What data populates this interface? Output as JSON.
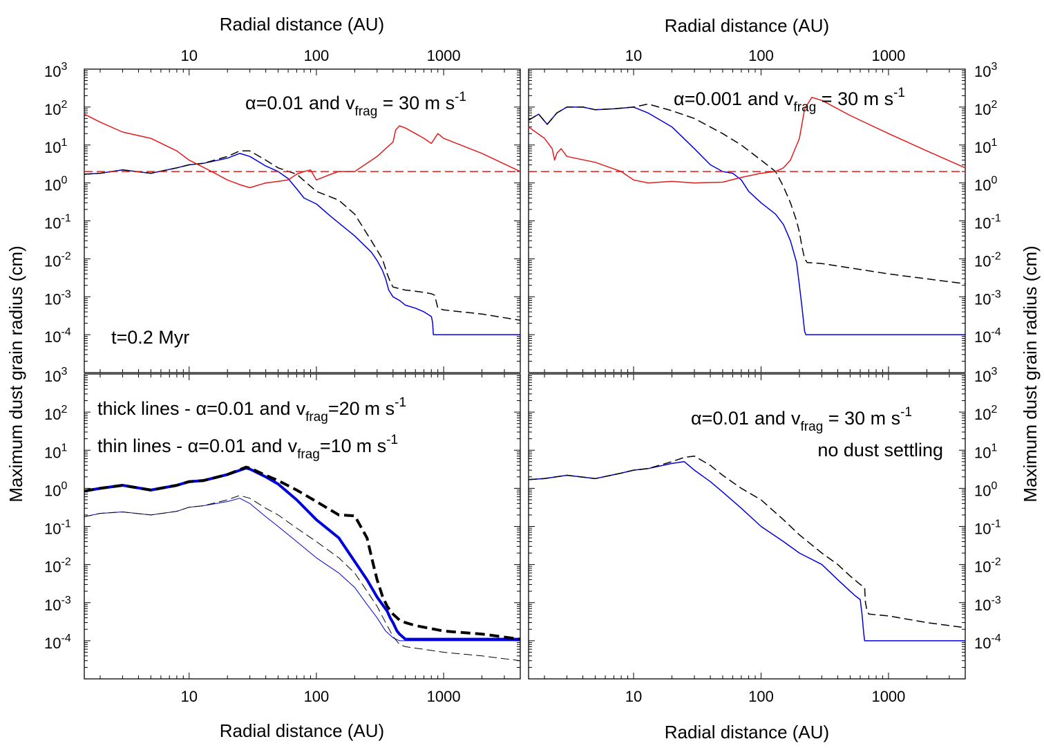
{
  "chart_data": [
    {
      "panel": "top-left",
      "type": "line",
      "scale": {
        "x": "log",
        "y": "log"
      },
      "xlim": [
        1.5,
        4000
      ],
      "ylim": [
        1e-05,
        1000
      ],
      "xlabel_top": "Radial distance (AU)",
      "ylabel": "Maximum dust grain radius (cm)",
      "annotation": {
        "alpha": "0.01",
        "vfrag": "30"
      },
      "time_label": "t=0.2 Myr",
      "series": [
        {
          "name": "blue-solid",
          "color": "#0000d8",
          "style": "solid",
          "width": 1.5,
          "x": [
            1.5,
            2,
            3,
            5,
            8,
            10,
            13,
            20,
            25,
            30,
            40,
            50,
            60,
            70,
            80,
            100,
            130,
            200,
            270,
            300,
            330,
            350,
            370,
            400,
            450,
            500,
            600,
            700,
            800,
            810,
            820,
            830,
            850,
            900,
            1000,
            2000,
            4000
          ],
          "y": [
            1.7,
            1.8,
            2.2,
            1.8,
            2.5,
            3.0,
            3.3,
            4.5,
            6.0,
            5.0,
            2.8,
            2.0,
            1.3,
            0.7,
            0.4,
            0.28,
            0.13,
            0.04,
            0.015,
            0.009,
            0.005,
            0.003,
            0.0015,
            0.001,
            0.0008,
            0.0006,
            0.0005,
            0.0004,
            0.0003,
            0.00025,
            0.0002,
            0.0001,
            0.0001,
            0.0001,
            0.0001,
            0.0001,
            0.0001
          ]
        },
        {
          "name": "black-dashed",
          "color": "#000000",
          "style": "dashed",
          "width": 1.5,
          "x": [
            1.5,
            2,
            3,
            5,
            8,
            10,
            13,
            20,
            25,
            30,
            40,
            50,
            70,
            100,
            150,
            200,
            270,
            330,
            360,
            380,
            400,
            500,
            600,
            700,
            800,
            850,
            900,
            1000,
            2000,
            4000
          ],
          "y": [
            1.7,
            1.8,
            2.2,
            1.8,
            2.5,
            3.0,
            3.3,
            5.0,
            7.0,
            7.0,
            4.0,
            2.5,
            1.7,
            0.6,
            0.35,
            0.15,
            0.03,
            0.01,
            0.004,
            0.0025,
            0.0018,
            0.0015,
            0.0014,
            0.0013,
            0.0012,
            0.0011,
            0.0005,
            0.00045,
            0.00035,
            0.00024
          ]
        },
        {
          "name": "red-solid",
          "color": "#e11b1b",
          "style": "solid",
          "width": 1.5,
          "x": [
            1.5,
            2,
            3,
            5,
            8,
            10,
            15,
            20,
            25,
            30,
            40,
            50,
            60,
            70,
            80,
            90,
            100,
            130,
            150,
            200,
            300,
            350,
            400,
            420,
            450,
            500,
            600,
            700,
            800,
            900,
            1000,
            2000,
            4000
          ],
          "y": [
            65,
            40,
            22,
            15,
            7,
            4,
            2,
            1.2,
            0.9,
            0.75,
            1.0,
            1.1,
            1.2,
            1.7,
            2.0,
            2.2,
            1.2,
            1.7,
            2.0,
            2.0,
            5,
            8,
            12,
            25,
            32,
            28,
            20,
            15,
            11,
            20,
            15,
            6,
            2
          ]
        },
        {
          "name": "red-dashed",
          "color": "#e11b1b",
          "style": "dashed",
          "width": 1.5,
          "x": [
            1.5,
            4000
          ],
          "y": [
            2,
            2
          ]
        }
      ]
    },
    {
      "panel": "top-right",
      "type": "line",
      "scale": {
        "x": "log",
        "y": "log"
      },
      "xlim": [
        1.5,
        4000
      ],
      "ylim": [
        1e-05,
        1000
      ],
      "xlabel_top": "Radial distance (AU)",
      "ylabel": "Maximum dust grain radius (cm)",
      "annotation": {
        "alpha": "0.001",
        "vfrag": "30"
      },
      "series": [
        {
          "name": "blue-solid",
          "color": "#0000d8",
          "style": "solid",
          "width": 1.5,
          "x": [
            1.5,
            1.8,
            2.1,
            2.5,
            3,
            4,
            5,
            7,
            10,
            13,
            20,
            30,
            40,
            50,
            60,
            70,
            80,
            100,
            130,
            150,
            170,
            190,
            200,
            210,
            220,
            225,
            230,
            300,
            1000,
            4000
          ],
          "y": [
            45,
            65,
            35,
            70,
            100,
            100,
            85,
            90,
            100,
            70,
            30,
            8,
            3,
            2,
            1.8,
            1.2,
            0.6,
            0.3,
            0.15,
            0.08,
            0.03,
            0.008,
            0.002,
            0.0005,
            0.00012,
            0.0001,
            0.0001,
            0.0001,
            0.0001,
            0.0001
          ]
        },
        {
          "name": "black-dashed",
          "color": "#000000",
          "style": "dashed",
          "width": 1.5,
          "x": [
            1.5,
            1.8,
            2.1,
            2.5,
            3,
            4,
            5,
            7,
            10,
            13,
            20,
            30,
            50,
            70,
            100,
            130,
            150,
            170,
            190,
            200,
            210,
            220,
            225,
            230,
            300,
            1000,
            4000
          ],
          "y": [
            45,
            65,
            35,
            70,
            100,
            100,
            85,
            90,
            100,
            120,
            80,
            50,
            20,
            10,
            4,
            2,
            0.8,
            0.3,
            0.1,
            0.05,
            0.02,
            0.01,
            0.009,
            0.008,
            0.0075,
            0.004,
            0.0022
          ]
        },
        {
          "name": "red-solid",
          "color": "#e11b1b",
          "style": "solid",
          "width": 1.5,
          "x": [
            1.5,
            2,
            2.3,
            2.4,
            2.5,
            2.7,
            3,
            5,
            8,
            10,
            13,
            20,
            30,
            50,
            70,
            100,
            130,
            150,
            170,
            200,
            220,
            250,
            300,
            500,
            1000,
            2000,
            4000
          ],
          "y": [
            30,
            15,
            8,
            4,
            6,
            8,
            5,
            3.5,
            2,
            1.2,
            1.0,
            1.1,
            1.0,
            1.05,
            1.4,
            1.8,
            2.0,
            2.5,
            4,
            15,
            90,
            180,
            150,
            60,
            20,
            7,
            2.5
          ]
        },
        {
          "name": "red-dashed",
          "color": "#e11b1b",
          "style": "dashed",
          "width": 1.5,
          "x": [
            1.5,
            4000
          ],
          "y": [
            2,
            2
          ]
        }
      ]
    },
    {
      "panel": "bottom-left",
      "type": "line",
      "scale": {
        "x": "log",
        "y": "log"
      },
      "xlim": [
        1.5,
        4000
      ],
      "ylim": [
        1e-05,
        1000
      ],
      "xlabel": "Radial distance (AU)",
      "ylabel": "Maximum dust grain radius (cm)",
      "annotation_thick": {
        "alpha": "0.01",
        "vfrag": "20"
      },
      "annotation_thin": {
        "alpha": "0.01",
        "vfrag": "10"
      },
      "series": [
        {
          "name": "blue-thick",
          "color": "#0000d8",
          "style": "solid",
          "width": 4,
          "x": [
            1.5,
            2,
            3,
            5,
            8,
            10,
            13,
            20,
            28,
            30,
            40,
            50,
            70,
            100,
            150,
            200,
            250,
            300,
            330,
            360,
            380,
            400,
            430,
            450,
            500,
            600,
            1000,
            2000,
            4000
          ],
          "y": [
            0.85,
            1.0,
            1.2,
            0.9,
            1.2,
            1.5,
            1.6,
            2.3,
            3.4,
            3.2,
            2.0,
            1.3,
            0.5,
            0.15,
            0.05,
            0.012,
            0.004,
            0.0014,
            0.0009,
            0.0006,
            0.0004,
            0.0003,
            0.00018,
            0.00015,
            0.00011,
            0.00011,
            0.00011,
            0.00011,
            0.00011
          ]
        },
        {
          "name": "black-thick-dashed",
          "color": "#000000",
          "style": "dashed",
          "width": 4,
          "x": [
            1.5,
            2,
            3,
            5,
            8,
            10,
            13,
            20,
            28,
            30,
            40,
            50,
            70,
            100,
            150,
            200,
            250,
            280,
            300,
            330,
            360,
            400,
            450,
            500,
            600,
            1000,
            2000,
            4000
          ],
          "y": [
            0.85,
            1.0,
            1.2,
            0.9,
            1.2,
            1.5,
            1.6,
            2.3,
            3.6,
            3.4,
            2.2,
            1.6,
            0.9,
            0.45,
            0.2,
            0.19,
            0.05,
            0.01,
            0.004,
            0.0015,
            0.0008,
            0.0005,
            0.00035,
            0.0003,
            0.00025,
            0.00018,
            0.00015,
            0.00011
          ]
        },
        {
          "name": "blue-thin",
          "color": "#0000d8",
          "style": "solid",
          "width": 1,
          "x": [
            1.5,
            2,
            3,
            5,
            8,
            10,
            13,
            20,
            25,
            30,
            40,
            50,
            70,
            100,
            150,
            200,
            250,
            300,
            350,
            400,
            450,
            500,
            1000,
            2000,
            4000
          ],
          "y": [
            0.18,
            0.22,
            0.24,
            0.2,
            0.25,
            0.32,
            0.35,
            0.45,
            0.55,
            0.4,
            0.18,
            0.1,
            0.04,
            0.015,
            0.006,
            0.0025,
            0.0009,
            0.0004,
            0.00018,
            0.00012,
            0.0001,
            0.0001,
            0.0001,
            0.0001,
            0.0001
          ]
        },
        {
          "name": "black-thin-dashed",
          "color": "#000000",
          "style": "dashed",
          "width": 1,
          "x": [
            1.5,
            2,
            3,
            5,
            8,
            10,
            13,
            20,
            25,
            30,
            40,
            50,
            70,
            100,
            150,
            200,
            250,
            300,
            350,
            400,
            450,
            500,
            1000,
            2000,
            4000
          ],
          "y": [
            0.18,
            0.22,
            0.24,
            0.2,
            0.25,
            0.32,
            0.35,
            0.5,
            0.65,
            0.55,
            0.3,
            0.2,
            0.09,
            0.04,
            0.015,
            0.006,
            0.002,
            0.0008,
            0.0003,
            0.00013,
            8e-05,
            7e-05,
            5e-05,
            4e-05,
            3e-05
          ]
        }
      ]
    },
    {
      "panel": "bottom-right",
      "type": "line",
      "scale": {
        "x": "log",
        "y": "log"
      },
      "xlim": [
        1.5,
        4000
      ],
      "ylim": [
        1e-05,
        1000
      ],
      "xlabel": "Radial distance (AU)",
      "ylabel": "Maximum dust grain radius (cm)",
      "annotation": {
        "alpha": "0.01",
        "vfrag": "30"
      },
      "subtitle": "no dust settling",
      "series": [
        {
          "name": "blue-solid",
          "color": "#0000d8",
          "style": "solid",
          "width": 1.5,
          "x": [
            1.5,
            2,
            3,
            5,
            8,
            10,
            13,
            20,
            25,
            30,
            40,
            50,
            70,
            100,
            150,
            200,
            300,
            400,
            500,
            550,
            600,
            620,
            640,
            650,
            660,
            700,
            1000,
            4000
          ],
          "y": [
            1.7,
            1.8,
            2.2,
            1.8,
            2.5,
            3.0,
            3.3,
            4.5,
            5.0,
            3.0,
            1.5,
            0.8,
            0.3,
            0.1,
            0.04,
            0.02,
            0.01,
            0.004,
            0.002,
            0.0015,
            0.0012,
            0.0005,
            0.00015,
            0.0001,
            0.0001,
            0.0001,
            0.0001,
            0.0001
          ]
        },
        {
          "name": "black-dashed",
          "color": "#000000",
          "style": "dashed",
          "width": 1.5,
          "x": [
            1.5,
            2,
            3,
            5,
            8,
            10,
            13,
            20,
            25,
            30,
            40,
            50,
            70,
            100,
            150,
            200,
            300,
            400,
            500,
            600,
            650,
            660,
            680,
            700,
            1000,
            2000,
            4000
          ],
          "y": [
            1.7,
            1.8,
            2.2,
            1.8,
            2.5,
            3.0,
            3.3,
            5.0,
            6.5,
            7.0,
            4.0,
            2.2,
            1.0,
            0.5,
            0.15,
            0.06,
            0.02,
            0.01,
            0.005,
            0.003,
            0.0025,
            0.001,
            0.0006,
            0.0005,
            0.00045,
            0.0003,
            0.00022
          ]
        }
      ]
    }
  ],
  "axis_labels": {
    "top_left_xlabel": "Radial distance (AU)",
    "top_right_xlabel": "Radial distance (AU)",
    "bottom_left_xlabel": "Radial distance (AU)",
    "bottom_right_xlabel": "Radial distance (AU)",
    "left_ylabel": "Maximum dust grain radius (cm)",
    "right_ylabel": "Maximum dust grain radius (cm)"
  },
  "x_ticks": [
    "10",
    "100",
    "1000"
  ],
  "x_tick_values": [
    10,
    100,
    1000
  ],
  "y_tick_base": "10",
  "y_tick_exponents": [
    "3",
    "2",
    "1",
    "0",
    "-1",
    "-2",
    "-3",
    "-4"
  ],
  "annotation_text": {
    "and": "and",
    "eq_spaced": " = ",
    "eq": "=",
    "units_spaced": " m s",
    "units": "m s",
    "superscript": "-1",
    "v": "v",
    "frag": "frag",
    "alpha_symbol": "α",
    "thick_prefix": "thick lines - ",
    "thin_prefix": "thin lines - "
  }
}
